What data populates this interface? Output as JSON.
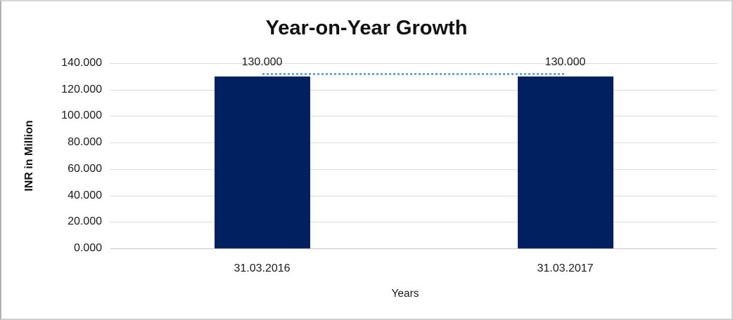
{
  "chart_data": {
    "type": "bar",
    "title": "Year-on-Year Growth",
    "categories": [
      "31.03.2016",
      "31.03.2017"
    ],
    "values": [
      130,
      130
    ],
    "data_labels": [
      "130.000",
      "130.000"
    ],
    "series": [
      {
        "name": "INR in Million",
        "values": [
          130,
          130
        ]
      }
    ],
    "xlabel": "Years",
    "ylabel": "INR in Million",
    "ylim": [
      0,
      140
    ],
    "ytick_step": 20,
    "ytick_labels": [
      "0.000",
      "20.000",
      "40.000",
      "60.000",
      "80.000",
      "100.000",
      "120.000",
      "140.000"
    ],
    "grid": true,
    "legend": "none",
    "colors": {
      "bar": "#002060",
      "connector_dotted": "#6da3d8",
      "gridline": "#d9d9d9",
      "text": "#1a1a1a"
    }
  }
}
